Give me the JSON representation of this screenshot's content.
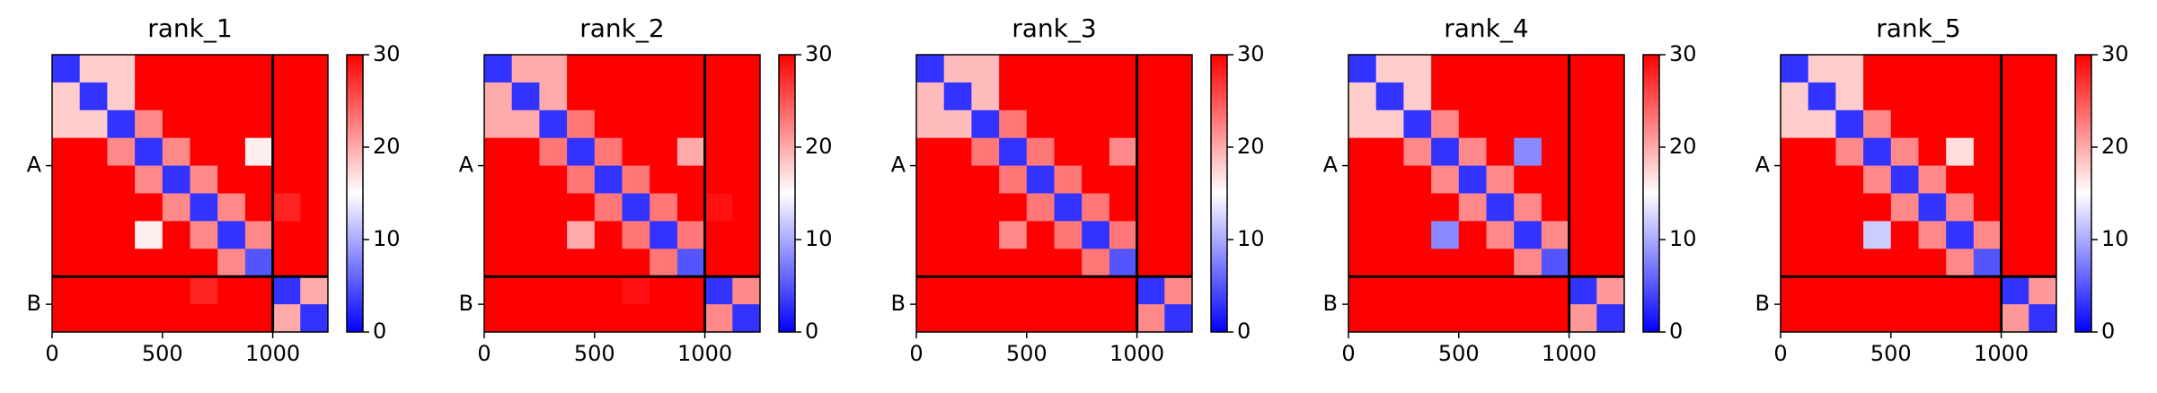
{
  "chart_data": [
    {
      "type": "heatmap",
      "title": "rank_1",
      "xlim": [
        0,
        1250
      ],
      "ylim": [
        1250,
        0
      ],
      "xticks": [
        0,
        500,
        1000
      ],
      "yticks": [
        {
          "value": 500,
          "label": "A"
        },
        {
          "value": 1125,
          "label": "B"
        }
      ],
      "chain_breaks": [
        1000
      ],
      "clim": [
        0,
        30
      ],
      "cticks": [
        0,
        10,
        20,
        30
      ],
      "colormap": [
        "#0000ff",
        "#ffffff",
        "#ff0000"
      ],
      "z": [
        [
          3,
          18,
          18,
          30,
          30,
          30,
          30,
          30,
          30,
          30
        ],
        [
          18,
          3,
          18,
          30,
          30,
          30,
          30,
          30,
          30,
          30
        ],
        [
          18,
          18,
          3,
          22,
          30,
          30,
          30,
          30,
          30,
          30
        ],
        [
          30,
          30,
          22,
          3,
          22,
          30,
          30,
          16,
          30,
          30
        ],
        [
          30,
          30,
          30,
          22,
          3,
          22,
          30,
          30,
          30,
          30
        ],
        [
          30,
          30,
          30,
          30,
          22,
          3,
          22,
          30,
          28,
          30
        ],
        [
          30,
          30,
          30,
          16,
          30,
          22,
          3,
          22,
          30,
          30
        ],
        [
          30,
          30,
          30,
          30,
          30,
          30,
          22,
          5,
          30,
          30
        ],
        [
          30,
          30,
          30,
          30,
          30,
          28,
          30,
          30,
          3,
          20
        ],
        [
          30,
          30,
          30,
          30,
          30,
          30,
          30,
          30,
          20,
          3
        ]
      ]
    },
    {
      "type": "heatmap",
      "title": "rank_2",
      "xlim": [
        0,
        1250
      ],
      "ylim": [
        1250,
        0
      ],
      "xticks": [
        0,
        500,
        1000
      ],
      "yticks": [
        {
          "value": 500,
          "label": "A"
        },
        {
          "value": 1125,
          "label": "B"
        }
      ],
      "chain_breaks": [
        1000
      ],
      "clim": [
        0,
        30
      ],
      "cticks": [
        0,
        10,
        20,
        30
      ],
      "colormap": [
        "#0000ff",
        "#ffffff",
        "#ff0000"
      ],
      "z": [
        [
          3,
          20,
          20,
          30,
          30,
          30,
          30,
          30,
          30,
          30
        ],
        [
          20,
          3,
          20,
          30,
          30,
          30,
          30,
          30,
          30,
          30
        ],
        [
          20,
          20,
          3,
          23,
          30,
          30,
          30,
          30,
          30,
          30
        ],
        [
          30,
          30,
          23,
          3,
          23,
          30,
          30,
          20,
          30,
          30
        ],
        [
          30,
          30,
          30,
          23,
          3,
          23,
          30,
          30,
          30,
          30
        ],
        [
          30,
          30,
          30,
          30,
          23,
          3,
          23,
          30,
          29,
          30
        ],
        [
          30,
          30,
          30,
          20,
          30,
          23,
          3,
          23,
          30,
          30
        ],
        [
          30,
          30,
          30,
          30,
          30,
          30,
          23,
          5,
          30,
          30
        ],
        [
          30,
          30,
          30,
          30,
          30,
          29,
          30,
          30,
          3,
          22
        ],
        [
          30,
          30,
          30,
          30,
          30,
          30,
          30,
          30,
          22,
          3
        ]
      ]
    },
    {
      "type": "heatmap",
      "title": "rank_3",
      "xlim": [
        0,
        1250
      ],
      "ylim": [
        1250,
        0
      ],
      "xticks": [
        0,
        500,
        1000
      ],
      "yticks": [
        {
          "value": 500,
          "label": "A"
        },
        {
          "value": 1125,
          "label": "B"
        }
      ],
      "chain_breaks": [
        1000
      ],
      "clim": [
        0,
        30
      ],
      "cticks": [
        0,
        10,
        20,
        30
      ],
      "colormap": [
        "#0000ff",
        "#ffffff",
        "#ff0000"
      ],
      "z": [
        [
          3,
          19,
          19,
          30,
          30,
          30,
          30,
          30,
          30,
          30
        ],
        [
          19,
          3,
          19,
          30,
          30,
          30,
          30,
          30,
          30,
          30
        ],
        [
          19,
          19,
          3,
          23,
          30,
          30,
          30,
          30,
          30,
          30
        ],
        [
          30,
          30,
          23,
          3,
          23,
          30,
          30,
          22,
          30,
          30
        ],
        [
          30,
          30,
          30,
          23,
          3,
          23,
          30,
          30,
          30,
          30
        ],
        [
          30,
          30,
          30,
          30,
          23,
          3,
          23,
          30,
          30,
          30
        ],
        [
          30,
          30,
          30,
          22,
          30,
          23,
          3,
          23,
          30,
          30
        ],
        [
          30,
          30,
          30,
          30,
          30,
          30,
          23,
          5,
          30,
          30
        ],
        [
          30,
          30,
          30,
          30,
          30,
          30,
          30,
          30,
          3,
          22
        ],
        [
          30,
          30,
          30,
          30,
          30,
          30,
          30,
          30,
          22,
          3
        ]
      ]
    },
    {
      "type": "heatmap",
      "title": "rank_4",
      "xlim": [
        0,
        1250
      ],
      "ylim": [
        1250,
        0
      ],
      "xticks": [
        0,
        500,
        1000
      ],
      "yticks": [
        {
          "value": 500,
          "label": "A"
        },
        {
          "value": 1125,
          "label": "B"
        }
      ],
      "chain_breaks": [
        1000
      ],
      "clim": [
        0,
        30
      ],
      "cticks": [
        0,
        10,
        20,
        30
      ],
      "colormap": [
        "#0000ff",
        "#ffffff",
        "#ff0000"
      ],
      "z": [
        [
          3,
          18,
          18,
          30,
          30,
          30,
          30,
          30,
          30,
          30
        ],
        [
          18,
          3,
          18,
          30,
          30,
          30,
          30,
          30,
          30,
          30
        ],
        [
          18,
          18,
          3,
          22,
          30,
          30,
          30,
          30,
          30,
          30
        ],
        [
          30,
          30,
          22,
          3,
          22,
          30,
          8,
          30,
          30,
          30
        ],
        [
          30,
          30,
          30,
          22,
          3,
          22,
          30,
          30,
          30,
          30
        ],
        [
          30,
          30,
          30,
          30,
          22,
          3,
          22,
          30,
          30,
          30
        ],
        [
          30,
          30,
          30,
          8,
          30,
          22,
          3,
          22,
          30,
          30
        ],
        [
          30,
          30,
          30,
          30,
          30,
          30,
          22,
          5,
          30,
          30
        ],
        [
          30,
          30,
          30,
          30,
          30,
          30,
          30,
          30,
          3,
          21
        ],
        [
          30,
          30,
          30,
          30,
          30,
          30,
          30,
          30,
          21,
          3
        ]
      ]
    },
    {
      "type": "heatmap",
      "title": "rank_5",
      "xlim": [
        0,
        1250
      ],
      "ylim": [
        1250,
        0
      ],
      "xticks": [
        0,
        500,
        1000
      ],
      "yticks": [
        {
          "value": 500,
          "label": "A"
        },
        {
          "value": 1125,
          "label": "B"
        }
      ],
      "chain_breaks": [
        1000
      ],
      "clim": [
        0,
        30
      ],
      "cticks": [
        0,
        10,
        20,
        30
      ],
      "colormap": [
        "#0000ff",
        "#ffffff",
        "#ff0000"
      ],
      "z": [
        [
          3,
          18,
          18,
          30,
          30,
          30,
          30,
          30,
          30,
          30
        ],
        [
          18,
          3,
          18,
          30,
          30,
          30,
          30,
          30,
          30,
          30
        ],
        [
          18,
          18,
          3,
          22,
          30,
          30,
          30,
          30,
          30,
          30
        ],
        [
          30,
          30,
          22,
          3,
          22,
          30,
          17,
          30,
          30,
          30
        ],
        [
          30,
          30,
          30,
          22,
          3,
          22,
          30,
          30,
          30,
          30
        ],
        [
          30,
          30,
          30,
          30,
          22,
          3,
          22,
          30,
          30,
          30
        ],
        [
          30,
          30,
          30,
          12,
          30,
          22,
          3,
          22,
          30,
          30
        ],
        [
          30,
          30,
          30,
          30,
          30,
          30,
          22,
          5,
          30,
          30
        ],
        [
          30,
          30,
          30,
          30,
          30,
          30,
          30,
          30,
          3,
          21
        ],
        [
          30,
          30,
          30,
          30,
          30,
          30,
          30,
          30,
          21,
          3
        ]
      ]
    }
  ]
}
